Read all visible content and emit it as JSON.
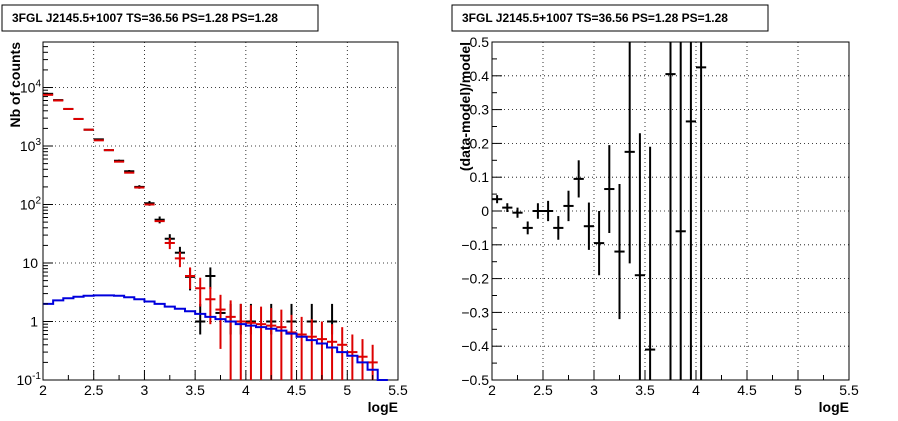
{
  "chart_data": [
    {
      "type": "scatter",
      "title": "3FGL J2145.5+1007 TS=36.56 PS=1.28 PS=1.28",
      "xlabel": "logE",
      "ylabel": "Nb of counts",
      "xlim": [
        2,
        5.5
      ],
      "ylim": [
        0.1,
        60000
      ],
      "yscale": "log",
      "grid": true,
      "xticks": [
        "2",
        "2.5",
        "3",
        "3.5",
        "4",
        "4.5",
        "5",
        "5.5"
      ],
      "yticks": [
        {
          "value": 0.1,
          "base": "10",
          "exp": "-1"
        },
        {
          "value": 1,
          "base": "1",
          "exp": ""
        },
        {
          "value": 10,
          "base": "10",
          "exp": ""
        },
        {
          "value": 100,
          "base": "10",
          "exp": "2"
        },
        {
          "value": 1000,
          "base": "10",
          "exp": "3"
        },
        {
          "value": 10000,
          "base": "10",
          "exp": "4"
        }
      ],
      "bin_width": 0.1,
      "series": [
        {
          "role": "data",
          "color": "#000000",
          "x": [
            2.05,
            2.15,
            2.25,
            2.35,
            2.45,
            2.55,
            2.65,
            2.75,
            2.85,
            2.95,
            3.05,
            3.15,
            3.25,
            3.35,
            3.45,
            3.55,
            3.65,
            3.75,
            3.85,
            3.95,
            4.05,
            4.25,
            4.45,
            4.65,
            4.85
          ],
          "y": [
            7800,
            6100,
            4300,
            2900,
            1900,
            1300,
            850,
            560,
            370,
            200,
            105,
            55,
            26,
            15,
            5.8,
            1,
            6,
            1.4,
            1,
            1,
            1,
            1,
            1,
            1,
            1
          ],
          "yerr_low": [
            88,
            78,
            66,
            54,
            44,
            36,
            29,
            24,
            19,
            14,
            10,
            7.4,
            5.1,
            3.9,
            2.4,
            0.4,
            2.4,
            0.7,
            0.4,
            0.4,
            0.4,
            0.4,
            0.4,
            0.4,
            0.4
          ],
          "yerr_high": [
            88,
            78,
            66,
            54,
            44,
            36,
            29,
            24,
            19,
            14,
            10,
            7.4,
            5.1,
            3.9,
            2.4,
            1.0,
            2.4,
            1.0,
            1.0,
            1.0,
            1.0,
            1.0,
            1.0,
            1.0,
            1.0
          ]
        },
        {
          "role": "model",
          "color": "#dd0000",
          "x": [
            2.05,
            2.15,
            2.25,
            2.35,
            2.45,
            2.55,
            2.65,
            2.75,
            2.85,
            2.95,
            3.05,
            3.15,
            3.25,
            3.35,
            3.45,
            3.55,
            3.65,
            3.75,
            3.85,
            3.95,
            4.05,
            4.15,
            4.25,
            4.35,
            4.45,
            4.55,
            4.65,
            4.75,
            4.85,
            4.95,
            5.05,
            5.15,
            5.25
          ],
          "y": [
            7500,
            6000,
            4300,
            2900,
            1900,
            1250,
            850,
            540,
            350,
            195,
            100,
            52,
            22,
            12,
            6,
            3.7,
            2.4,
            1.6,
            1.2,
            1,
            0.95,
            0.9,
            0.85,
            0.8,
            0.65,
            0.6,
            0.55,
            0.5,
            0.45,
            0.4,
            0.3,
            0.25,
            0.2
          ],
          "yerr_low": [
            0,
            0,
            0,
            0,
            0,
            0,
            0,
            0,
            0,
            0,
            0,
            0,
            4.7,
            3.5,
            2.4,
            1.9,
            1.5,
            1.26,
            1.1,
            1,
            0.95,
            0.9,
            0.85,
            0.8,
            0.65,
            0.6,
            0.55,
            0.5,
            0.45,
            0.4,
            0.3,
            0.25,
            0.2
          ],
          "yerr_high": [
            0,
            0,
            0,
            0,
            0,
            0,
            0,
            0,
            0,
            0,
            0,
            0,
            4.7,
            3.5,
            2.4,
            1.9,
            1.5,
            1.26,
            1.1,
            1,
            0.95,
            0.9,
            0.85,
            0.8,
            0.65,
            0.6,
            0.55,
            0.5,
            0.45,
            0.4,
            0.3,
            0.25,
            0.2
          ]
        },
        {
          "role": "component",
          "type": "step",
          "color": "#0000dd",
          "x": [
            2.0,
            2.1,
            2.2,
            2.3,
            2.4,
            2.5,
            2.6,
            2.7,
            2.8,
            2.9,
            3.0,
            3.1,
            3.2,
            3.3,
            3.4,
            3.5,
            3.6,
            3.7,
            3.8,
            3.9,
            4.0,
            4.1,
            4.2,
            4.3,
            4.4,
            4.5,
            4.6,
            4.7,
            4.8,
            4.9,
            5.0,
            5.1,
            5.2,
            5.3
          ],
          "y": [
            2.0,
            2.3,
            2.5,
            2.65,
            2.75,
            2.8,
            2.8,
            2.75,
            2.6,
            2.4,
            2.2,
            2.0,
            1.8,
            1.65,
            1.5,
            1.35,
            1.2,
            1.1,
            1.0,
            0.9,
            0.85,
            0.8,
            0.75,
            0.7,
            0.62,
            0.55,
            0.48,
            0.42,
            0.36,
            0.3,
            0.26,
            0.2,
            0.15,
            0.1
          ]
        }
      ]
    },
    {
      "type": "scatter",
      "title": "3FGL J2145.5+1007 TS=36.56 PS=1.28 PS=1.28",
      "xlabel": "logE",
      "ylabel": "(data-model)/model",
      "xlim": [
        2,
        5.5
      ],
      "ylim": [
        -0.5,
        0.5
      ],
      "grid": true,
      "xticks": [
        "2",
        "2.5",
        "3",
        "3.5",
        "4",
        "4.5",
        "5",
        "5.5"
      ],
      "yticks": [
        "−0.5",
        "−0.4",
        "−0.3",
        "−0.2",
        "−0.1",
        "0",
        "0.1",
        "0.2",
        "0.3",
        "0.4",
        "0.5"
      ],
      "bin_width": 0.1,
      "series": [
        {
          "role": "residual",
          "color": "#000000",
          "x": [
            2.05,
            2.15,
            2.25,
            2.35,
            2.45,
            2.55,
            2.65,
            2.75,
            2.85,
            2.95,
            3.05,
            3.15,
            3.25,
            3.35,
            3.45,
            3.55,
            3.75,
            3.85,
            3.95,
            4.05
          ],
          "y": [
            0.035,
            0.01,
            -0.005,
            -0.05,
            0.0,
            0.0,
            -0.05,
            0.015,
            0.095,
            -0.045,
            -0.095,
            0.065,
            -0.12,
            0.175,
            -0.19,
            -0.41,
            0.405,
            -0.06,
            0.265,
            0.425
          ],
          "yerr": [
            0.012,
            0.013,
            0.015,
            0.019,
            0.023,
            0.03,
            0.035,
            0.045,
            0.055,
            0.07,
            0.095,
            0.13,
            0.2,
            0.33,
            0.42,
            0.6,
            1.0,
            1.0,
            1.0,
            1.0
          ]
        }
      ]
    }
  ]
}
